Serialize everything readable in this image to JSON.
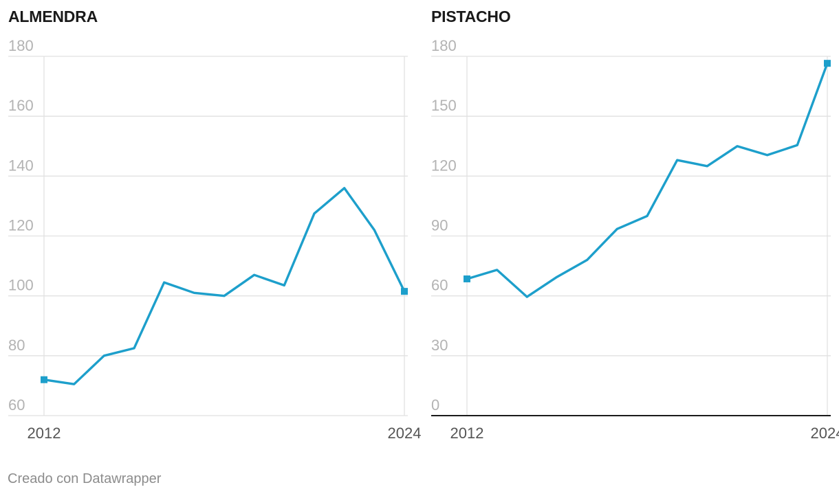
{
  "footer": "Creado con Datawrapper",
  "colors": {
    "line": "#1d9fcb",
    "grid": "#e1e1e1",
    "axis": "#1a1a1a"
  },
  "chart_data": [
    {
      "type": "line",
      "title": "ALMENDRA",
      "x": [
        2012,
        2013,
        2014,
        2015,
        2016,
        2017,
        2018,
        2019,
        2020,
        2021,
        2022,
        2023,
        2024
      ],
      "x_tick_labels": [
        "2012",
        "2024"
      ],
      "y_ticks": [
        60,
        80,
        100,
        120,
        140,
        160,
        180
      ],
      "ylim": [
        60,
        180
      ],
      "series": [
        {
          "values": [
            72,
            70.5,
            80,
            82.5,
            104.5,
            101,
            100,
            107,
            103.5,
            127.5,
            136,
            122,
            101.5
          ]
        }
      ],
      "grid": true,
      "zero_line": false
    },
    {
      "type": "line",
      "title": "PISTACHO",
      "x": [
        2012,
        2013,
        2014,
        2015,
        2016,
        2017,
        2018,
        2019,
        2020,
        2021,
        2022,
        2023,
        2024
      ],
      "x_tick_labels": [
        "2012",
        "2024"
      ],
      "y_ticks": [
        0,
        30,
        60,
        90,
        120,
        150,
        180
      ],
      "ylim": [
        0,
        180
      ],
      "series": [
        {
          "values": [
            68.5,
            73,
            59.5,
            69.5,
            78,
            93.5,
            100,
            128,
            125,
            135,
            130.5,
            135.5,
            176.5
          ]
        }
      ],
      "grid": true,
      "zero_line": true
    }
  ]
}
